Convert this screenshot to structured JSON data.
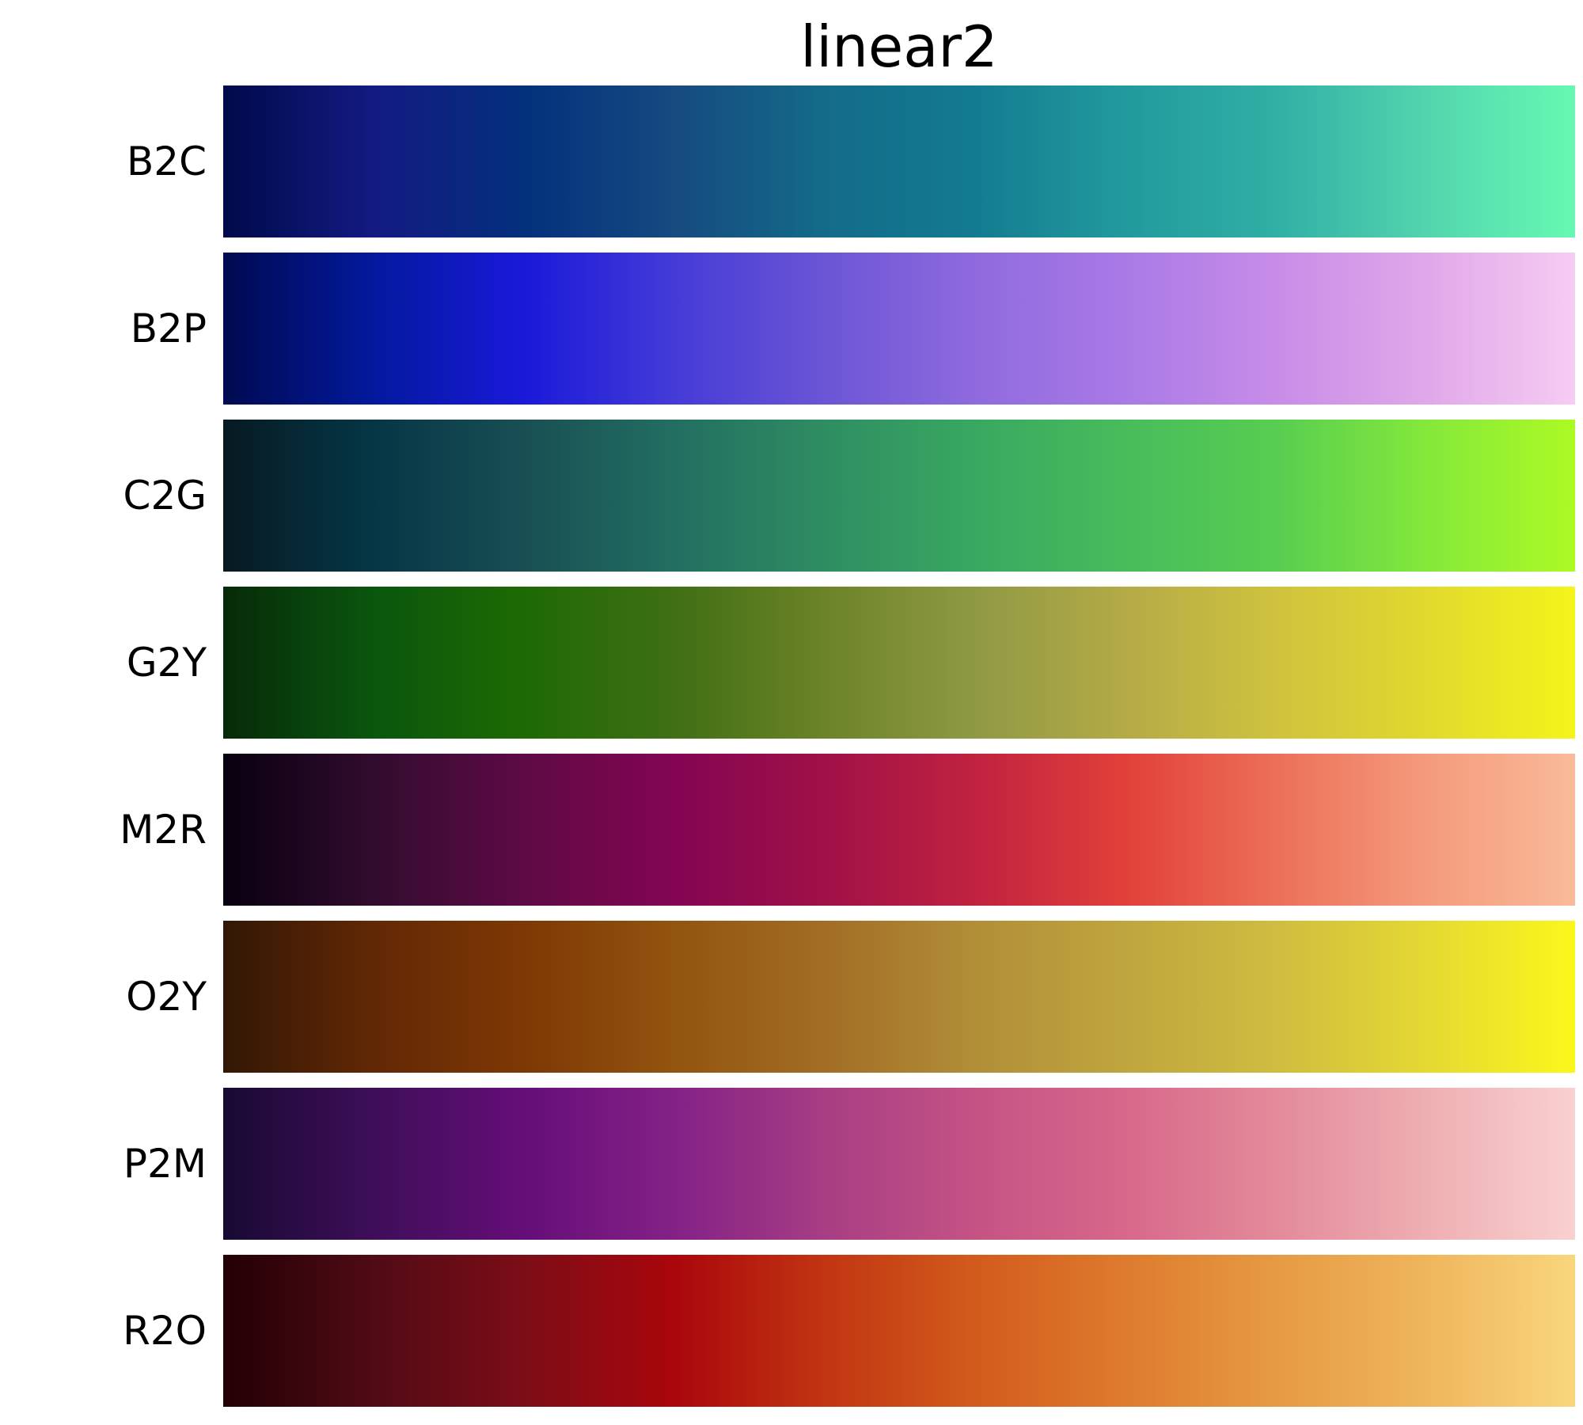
{
  "chart_data": {
    "type": "heatmap",
    "title": "linear2",
    "xlabel": "",
    "ylabel": "",
    "grid": false,
    "legend": "none",
    "series": [
      {
        "name": "B2C",
        "colors": [
          "#000a4a",
          "#131a82",
          "#04307c",
          "#164a80",
          "#136b89",
          "#137b91",
          "#229a9d",
          "#30afa5",
          "#52d4ae",
          "#66f9b2"
        ]
      },
      {
        "name": "B2P",
        "colors": [
          "#000a50",
          "#03199d",
          "#1a19d9",
          "#443bd7",
          "#6b55d5",
          "#8f6ade",
          "#a97ae6",
          "#c78ce8",
          "#e0a7e9",
          "#f6ccf3"
        ]
      },
      {
        "name": "C2G",
        "colors": [
          "#061a22",
          "#053646",
          "#194f54",
          "#226e61",
          "#2f8d62",
          "#38a861",
          "#48bc5b",
          "#57cd51",
          "#84e83b",
          "#acfa24"
        ]
      },
      {
        "name": "G2Y",
        "colors": [
          "#072a08",
          "#0a560e",
          "#1d6a04",
          "#406f14",
          "#6c8328",
          "#8f9944",
          "#b4aa47",
          "#cfc23e",
          "#e0d92e",
          "#f3f51a"
        ]
      },
      {
        "name": "M2R",
        "colors": [
          "#08000f",
          "#310c2e",
          "#5e0a45",
          "#830552",
          "#a01048",
          "#c02240",
          "#e14039",
          "#ec6f58",
          "#f49a7c",
          "#f9ba98"
        ]
      },
      {
        "name": "O2Y",
        "colors": [
          "#321705",
          "#622805",
          "#7e3805",
          "#92540f",
          "#a26d25",
          "#b18e38",
          "#bfa53e",
          "#cfbc40",
          "#e4d833",
          "#fbf71b"
        ]
      },
      {
        "name": "P2M",
        "colors": [
          "#180a33",
          "#3e0e59",
          "#650e78",
          "#832186",
          "#a73d83",
          "#c45384",
          "#d7688a",
          "#e38a9a",
          "#eeaeb2",
          "#f9d1d0"
        ]
      },
      {
        "name": "R2O",
        "colors": [
          "#220005",
          "#500b15",
          "#7c0d17",
          "#aa060c",
          "#c13512",
          "#d25b1c",
          "#de7b2e",
          "#e69a43",
          "#efb55c",
          "#f9d67c"
        ]
      }
    ]
  }
}
